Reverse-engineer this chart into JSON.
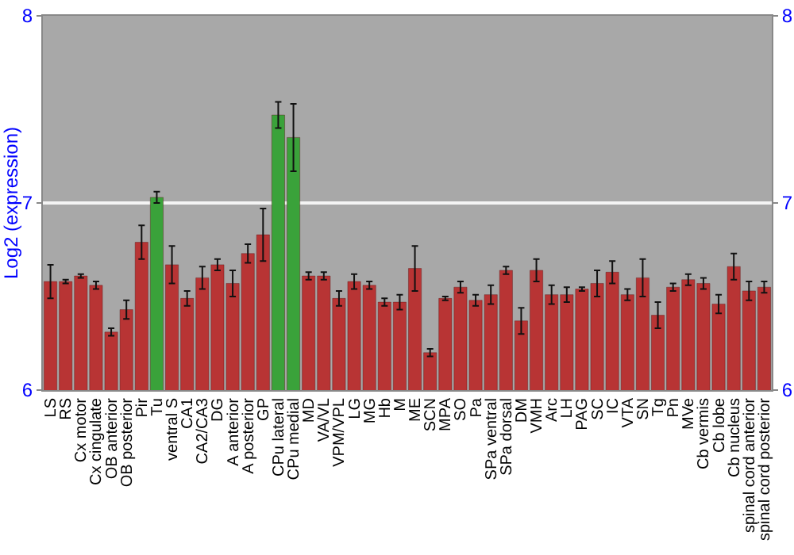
{
  "chart_data": {
    "type": "bar",
    "ylabel": "Log2 (expression)",
    "categories": [
      "LS",
      "RS",
      "Cx motor",
      "Cx cingulate",
      "OB anterior",
      "OB posterior",
      "Pir",
      "Tu",
      "ventral S",
      "CA1",
      "CA2/CA3",
      "DG",
      "A anterior",
      "A posterior",
      "GP",
      "CPu lateral",
      "CPu medial",
      "MD",
      "VA/VL",
      "VPM/VPL",
      "LG",
      "MG",
      "Hb",
      "M",
      "ME",
      "SCN",
      "MPA",
      "SO",
      "Pa",
      "SPa ventral",
      "SPa dorsal",
      "DM",
      "VMH",
      "Arc",
      "LH",
      "PAG",
      "SC",
      "IC",
      "VTA",
      "SN",
      "Tg",
      "Pn",
      "MVe",
      "Cb vermis",
      "Cb lobe",
      "Cb nucleus",
      "spinal cord anterior",
      "spinal cord posterior"
    ],
    "values": [
      6.58,
      6.58,
      6.61,
      6.56,
      6.31,
      6.43,
      6.79,
      7.03,
      6.67,
      6.49,
      6.6,
      6.67,
      6.57,
      6.73,
      6.83,
      7.47,
      7.35,
      6.61,
      6.61,
      6.49,
      6.58,
      6.56,
      6.47,
      6.47,
      6.65,
      6.2,
      6.49,
      6.55,
      6.48,
      6.51,
      6.64,
      6.37,
      6.64,
      6.51,
      6.51,
      6.54,
      6.57,
      6.63,
      6.51,
      6.6,
      6.4,
      6.55,
      6.59,
      6.57,
      6.46,
      6.66,
      6.53,
      6.55
    ],
    "errors": [
      0.09,
      0.01,
      0.01,
      0.02,
      0.02,
      0.05,
      0.09,
      0.03,
      0.1,
      0.04,
      0.06,
      0.03,
      0.07,
      0.05,
      0.14,
      0.07,
      0.18,
      0.02,
      0.02,
      0.04,
      0.04,
      0.02,
      0.02,
      0.04,
      0.12,
      0.02,
      0.01,
      0.03,
      0.03,
      0.05,
      0.02,
      0.07,
      0.06,
      0.05,
      0.04,
      0.01,
      0.07,
      0.06,
      0.03,
      0.1,
      0.07,
      0.02,
      0.03,
      0.03,
      0.05,
      0.07,
      0.05,
      0.03
    ],
    "colors": [
      "#b83434",
      "#b83434",
      "#b83434",
      "#b83434",
      "#b83434",
      "#b83434",
      "#b83434",
      "#3aa23a",
      "#b83434",
      "#b83434",
      "#b83434",
      "#b83434",
      "#b83434",
      "#b83434",
      "#b83434",
      "#3aa23a",
      "#3aa23a",
      "#b83434",
      "#b83434",
      "#b83434",
      "#b83434",
      "#b83434",
      "#b83434",
      "#b83434",
      "#b83434",
      "#b83434",
      "#b83434",
      "#b83434",
      "#b83434",
      "#b83434",
      "#b83434",
      "#b83434",
      "#b83434",
      "#b83434",
      "#b83434",
      "#b83434",
      "#b83434",
      "#b83434",
      "#b83434",
      "#b83434",
      "#b83434",
      "#b83434",
      "#b83434",
      "#b83434",
      "#b83434",
      "#b83434",
      "#b83434",
      "#b83434"
    ],
    "ylim": [
      6,
      8
    ],
    "yticks": [
      6,
      7,
      8
    ],
    "y2lim": [
      6,
      8
    ],
    "y2ticks": [
      6,
      7,
      8
    ],
    "grid": "y"
  }
}
